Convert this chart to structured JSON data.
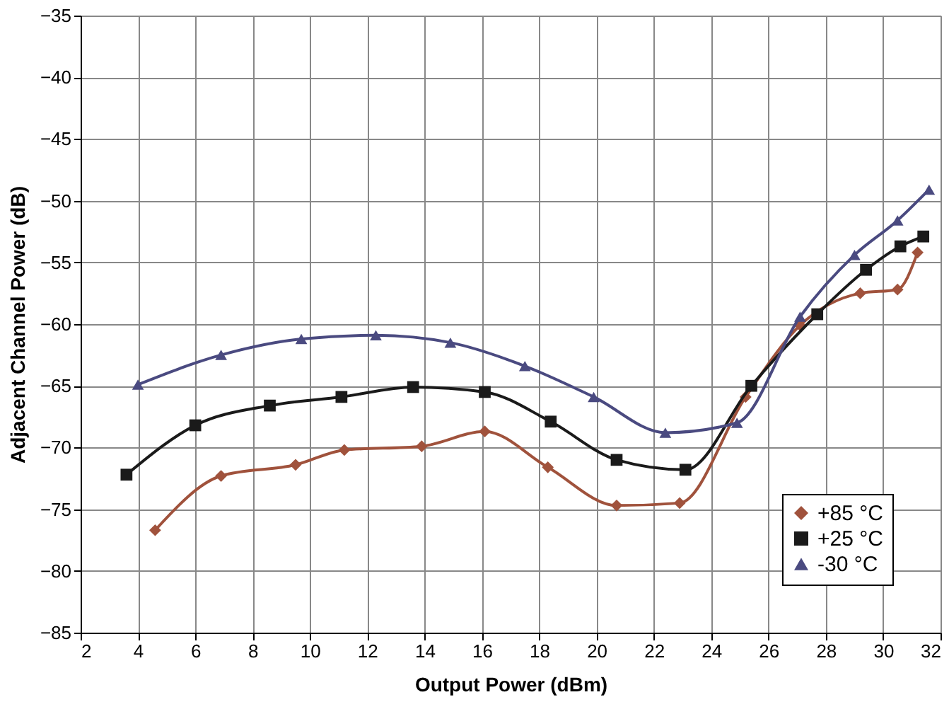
{
  "chart_data": {
    "type": "line",
    "xlabel": "Output Power (dBm)",
    "ylabel": "Adjacent Channel Power (dB)",
    "xlim": [
      2,
      32
    ],
    "xticks": [
      2,
      4,
      6,
      8,
      10,
      12,
      14,
      16,
      18,
      20,
      22,
      24,
      26,
      28,
      30,
      32
    ],
    "ylim": [
      -85,
      -35
    ],
    "yticks": [
      -85,
      -80,
      -75,
      -70,
      -65,
      -60,
      -55,
      -50,
      -45,
      -40,
      -35
    ],
    "grid": true,
    "legend": "bottom right",
    "line_style": "solid",
    "series": [
      {
        "name": "+85 °C",
        "color": "#a0523c",
        "marker": "diamond",
        "x": [
          4.6,
          6.9,
          9.5,
          11.2,
          13.9,
          16.1,
          18.3,
          20.7,
          22.9,
          25.2,
          27.1,
          29.2,
          30.5,
          31.2
        ],
        "values": [
          -76.7,
          -72.3,
          -71.4,
          -70.2,
          -69.9,
          -68.7,
          -71.6,
          -74.7,
          -74.5,
          -65.9,
          -60.1,
          -57.5,
          -57.2,
          -54.2
        ]
      },
      {
        "name": "+25 °C",
        "color": "#1a1a1a",
        "marker": "square",
        "x": [
          3.6,
          6.0,
          8.6,
          11.1,
          13.6,
          16.1,
          18.4,
          20.7,
          23.1,
          25.4,
          27.7,
          29.4,
          30.6,
          31.4
        ],
        "values": [
          -72.2,
          -68.2,
          -66.6,
          -65.9,
          -65.1,
          -65.5,
          -67.9,
          -71.0,
          -71.8,
          -65.0,
          -59.2,
          -55.6,
          -53.7,
          -52.9
        ]
      },
      {
        "name": "-30 °C",
        "color": "#4a4a80",
        "marker": "triangle",
        "x": [
          4.0,
          6.9,
          9.7,
          12.3,
          14.9,
          17.5,
          19.9,
          22.4,
          24.9,
          27.1,
          29.0,
          30.5,
          31.6
        ],
        "values": [
          -64.9,
          -62.5,
          -61.2,
          -60.9,
          -61.5,
          -63.4,
          -65.9,
          -68.8,
          -68.0,
          -59.4,
          -54.4,
          -51.6,
          -49.1
        ]
      }
    ]
  }
}
